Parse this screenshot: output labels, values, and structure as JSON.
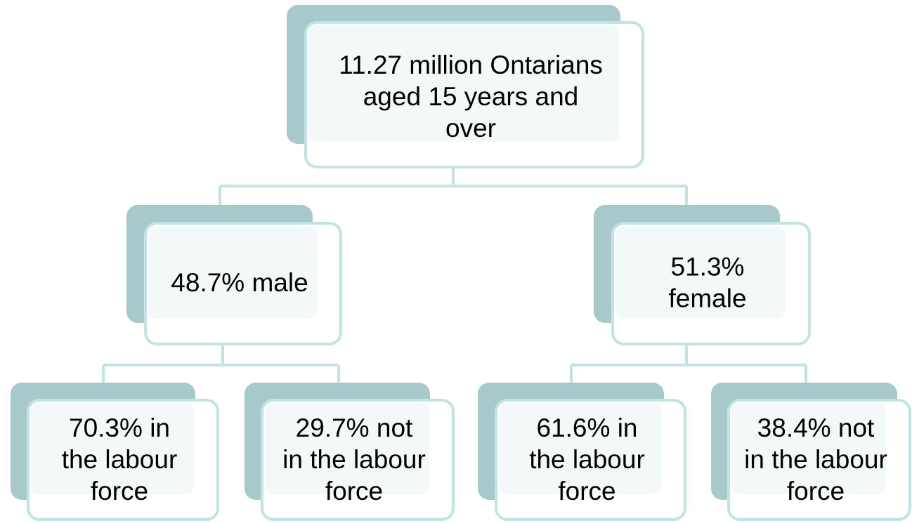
{
  "nodes": [
    {
      "lines": [
        "11.27 million Ontarians",
        "aged 15 years and",
        "over"
      ]
    },
    {
      "lines": [
        "48.7% male"
      ]
    },
    {
      "lines": [
        "51.3%",
        "female"
      ]
    },
    {
      "lines": [
        "70.3% in",
        "the labour",
        "force"
      ]
    },
    {
      "lines": [
        "29.7% not",
        "in the labour",
        "force"
      ]
    },
    {
      "lines": [
        "61.6% in",
        "the labour",
        "force"
      ]
    },
    {
      "lines": [
        "38.4% not",
        "in the labour",
        "force"
      ]
    }
  ]
}
